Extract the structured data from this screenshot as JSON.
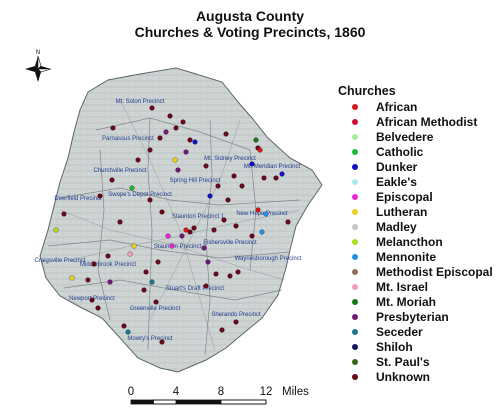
{
  "title": {
    "line1": "Augusta County",
    "line2": "Churches & Voting Precincts, 1860"
  },
  "compass": {
    "icon": "compass-rose-icon",
    "north_label": "N"
  },
  "legend": {
    "title": "Churches",
    "items": [
      {
        "label": "African",
        "color": "#d81818"
      },
      {
        "label": "African Methodist",
        "color": "#c81030"
      },
      {
        "label": "Belvedere",
        "color": "#a8eca0"
      },
      {
        "label": "Catholic",
        "color": "#20b830"
      },
      {
        "label": "Dunker",
        "color": "#1010c8"
      },
      {
        "label": "Eakle's",
        "color": "#a8e8f0"
      },
      {
        "label": "Episcopal",
        "color": "#e828d8"
      },
      {
        "label": "Lutheran",
        "color": "#e8d020"
      },
      {
        "label": "Madley",
        "color": "#c8c8c0"
      },
      {
        "label": "Melancthon",
        "color": "#a8e020"
      },
      {
        "label": "Mennonite",
        "color": "#2090e8"
      },
      {
        "label": "Methodist Episcopal",
        "color": "#986860"
      },
      {
        "label": "Mt. Israel",
        "color": "#f0a0b0"
      },
      {
        "label": "Mt. Moriah",
        "color": "#187818"
      },
      {
        "label": "Presbyterian",
        "color": "#701878"
      },
      {
        "label": "Seceder",
        "color": "#187890"
      },
      {
        "label": "Shiloh",
        "color": "#101860"
      },
      {
        "label": "St. Paul's",
        "color": "#306818"
      },
      {
        "label": "Unknown",
        "color": "#680818"
      }
    ]
  },
  "precincts": [
    "Mt. Solon Precinct",
    "Parnassus Precinct",
    "Churchville Precinct",
    "Mt. Sidney Precinct",
    "Mt. Meridian Precinct",
    "Deerfield Precinct",
    "Swope's Depot Precinct",
    "Spring Hill Precinct",
    "Staunton Precinct 1",
    "New Hope Precinct",
    "Craigsville Precinct",
    "Middlebrook Precinct",
    "Staunton Precinct 2",
    "Fishersville Precinct",
    "Waynesborough Precinct",
    "Newport Precinct",
    "Greenville Precinct",
    "Stuart's Draft Precinct",
    "Sherando Precinct",
    "Mowry's Precinct"
  ],
  "scale_bar": {
    "ticks": [
      "0",
      "4",
      "8",
      "12"
    ],
    "unit": "Miles"
  }
}
